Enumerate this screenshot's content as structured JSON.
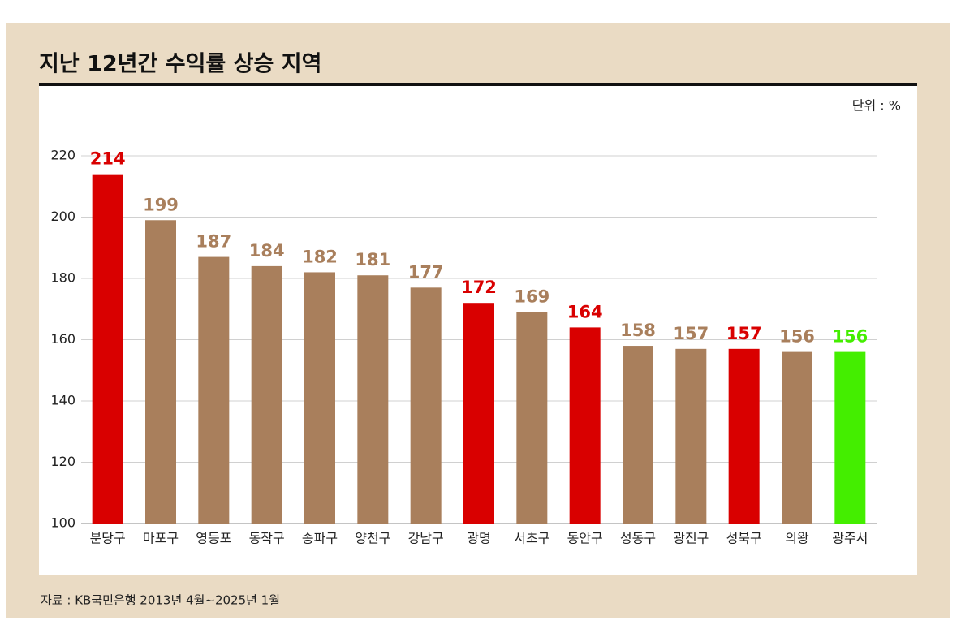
{
  "chart_data": {
    "type": "bar",
    "title": "지난 12년간 수익률 상승 지역",
    "unit_label": "단위 : %",
    "source": "자료 : KB국민은행  2013년 4월~2025년 1월",
    "categories": [
      "분당구",
      "마포구",
      "영등포",
      "동작구",
      "송파구",
      "양천구",
      "강남구",
      "광명",
      "서초구",
      "동안구",
      "성동구",
      "광진구",
      "성북구",
      "의왕",
      "광주서"
    ],
    "values": [
      214,
      199,
      187,
      184,
      182,
      181,
      177,
      172,
      169,
      164,
      158,
      157,
      157,
      156,
      156
    ],
    "colors": [
      "#d90000",
      "#a97f5c",
      "#a97f5c",
      "#a97f5c",
      "#a97f5c",
      "#a97f5c",
      "#a97f5c",
      "#d90000",
      "#a97f5c",
      "#d90000",
      "#a97f5c",
      "#a97f5c",
      "#d90000",
      "#a97f5c",
      "#44ee00"
    ],
    "ylim": [
      100,
      220
    ],
    "yticks": [
      100,
      120,
      140,
      160,
      180,
      200,
      220
    ],
    "grid": true
  }
}
